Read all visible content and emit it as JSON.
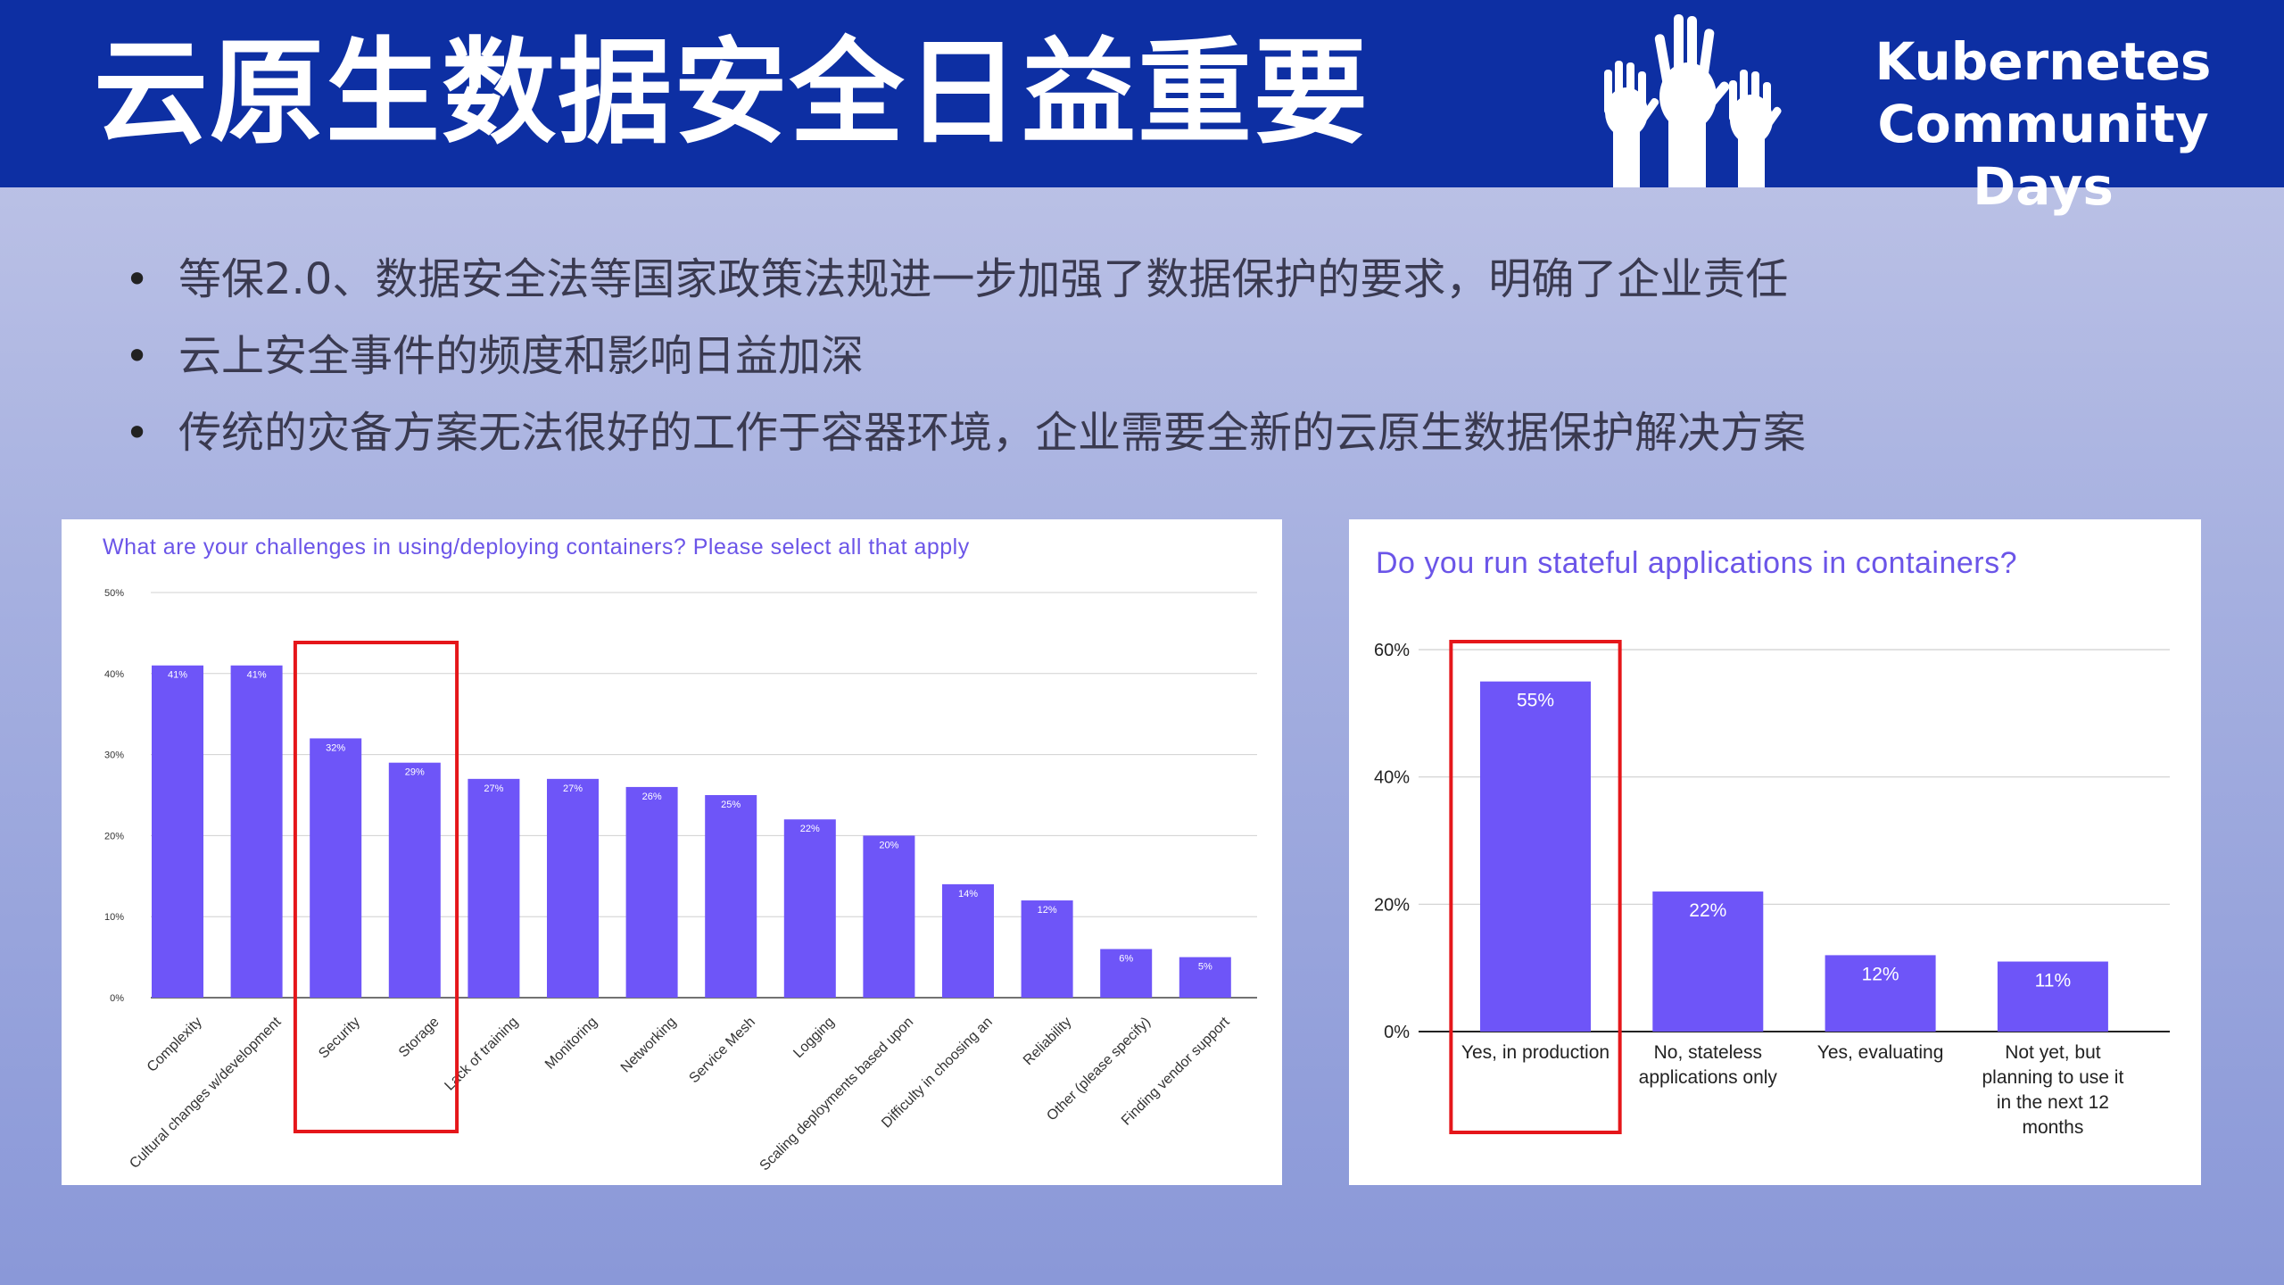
{
  "slide": {
    "title": "云原生数据安全日益重要",
    "logo_line1": "Kubernetes",
    "logo_line2": "Community Days",
    "bullets": [
      "等保2.0、数据安全法等国家政策法规进一步加强了数据保护的要求，明确了企业责任",
      "云上安全事件的频度和影响日益加深",
      "传统的灾备方案无法很好的工作于容器环境，企业需要全新的云原生数据保护解决方案"
    ],
    "bullet_symbol": "•"
  },
  "chart_data": [
    {
      "type": "bar",
      "title": "What are your challenges in using/deploying containers? Please select all that apply",
      "categories": [
        "Complexity",
        "Cultural changes w/development",
        "Security",
        "Storage",
        "Lack of training",
        "Monitoring",
        "Networking",
        "Service Mesh",
        "Logging",
        "Scaling deployments based upon",
        "Difficulty in choosing an",
        "Reliability",
        "Other (please specify)",
        "Finding vendor support"
      ],
      "values": [
        41,
        41,
        32,
        29,
        27,
        27,
        26,
        25,
        22,
        20,
        14,
        12,
        6,
        5
      ],
      "labels": [
        "41%",
        "41%",
        "32%",
        "29%",
        "27%",
        "27%",
        "26%",
        "25%",
        "22%",
        "20%",
        "14%",
        "12%",
        "6%",
        "5%"
      ],
      "yticks": [
        "0%",
        "10%",
        "20%",
        "30%",
        "40%",
        "50%"
      ],
      "ylim": [
        0,
        50
      ],
      "grid": true,
      "bar_color": "#6e55f8",
      "highlight_categories": [
        "Security",
        "Storage"
      ],
      "highlight_color": "#e5161a"
    },
    {
      "type": "bar",
      "title": "Do you run stateful applications in containers?",
      "categories": [
        [
          "Yes, in production"
        ],
        [
          "No, stateless",
          "applications only"
        ],
        [
          "Yes, evaluating"
        ],
        [
          "Not yet, but",
          "planning to use it",
          "in the next 12",
          "months"
        ]
      ],
      "values": [
        55,
        22,
        12,
        11
      ],
      "labels": [
        "55%",
        "22%",
        "12%",
        "11%"
      ],
      "yticks": [
        "0%",
        "20%",
        "40%",
        "60%"
      ],
      "ylim": [
        0,
        60
      ],
      "grid": true,
      "bar_color": "#6e55f8",
      "highlight_categories": [
        "Yes, in production"
      ],
      "highlight_color": "#e5161a"
    }
  ]
}
